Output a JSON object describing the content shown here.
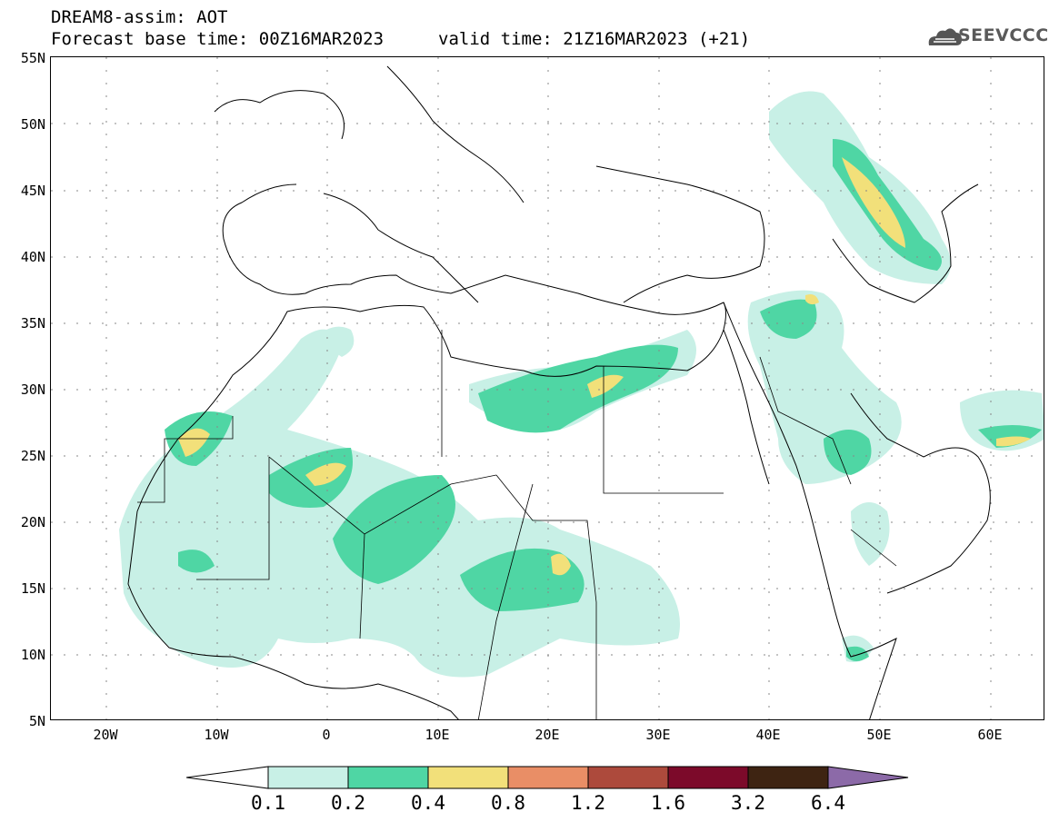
{
  "header": {
    "line1": "DREAM8-assim: AOT",
    "line2_base": "Forecast base time: 00Z16MAR2023",
    "line2_valid": "valid time: 21Z16MAR2023 (+21)"
  },
  "logo": {
    "text": "SEEVCCC",
    "icon": "cloud-logo-icon"
  },
  "axes": {
    "lat_labels": [
      "55N",
      "50N",
      "45N",
      "40N",
      "35N",
      "30N",
      "25N",
      "20N",
      "15N",
      "10N",
      "5N"
    ],
    "lon_labels": [
      "20W",
      "10W",
      "0",
      "10E",
      "20E",
      "30E",
      "40E",
      "50E",
      "60E"
    ]
  },
  "colorbar": {
    "labels": [
      "0.1",
      "0.2",
      "0.4",
      "0.8",
      "1.2",
      "1.6",
      "3.2",
      "6.4"
    ],
    "colors": [
      "#c8f0e6",
      "#4fd6a4",
      "#f2e07a",
      "#e98e66",
      "#ad4a3c",
      "#7c0a2a",
      "#3e2412",
      "#8c6aa8"
    ]
  }
}
